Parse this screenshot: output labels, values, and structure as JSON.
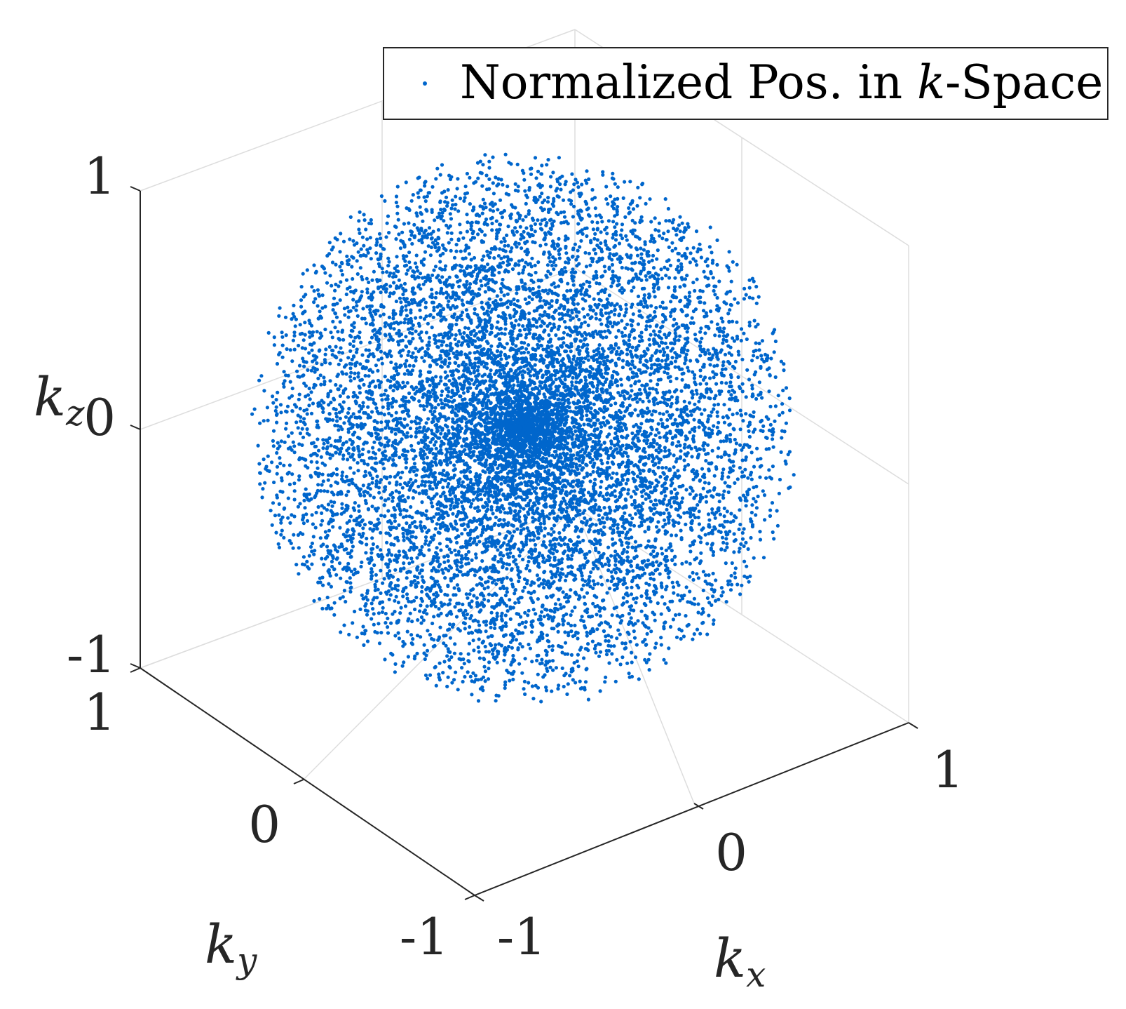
{
  "chart_data": {
    "type": "scatter",
    "projection": "3d",
    "description_of_data": "points uniformly distributed on and within the unit sphere in normalized k-space, denser toward the center",
    "series": [
      {
        "name": "Normalized Pos. in k-Space",
        "color": "#0066cc",
        "marker": "dot",
        "distribution": "ball",
        "radius": 1
      }
    ],
    "axes": {
      "x": {
        "label_base": "k",
        "label_sub": "x",
        "range": [
          -1,
          1
        ],
        "ticks": [
          "-1",
          "0",
          "1"
        ]
      },
      "y": {
        "label_base": "k",
        "label_sub": "y",
        "range": [
          -1,
          1
        ],
        "ticks": [
          "-1",
          "0",
          "1"
        ]
      },
      "z": {
        "label_base": "k",
        "label_sub": "z",
        "range": [
          -1,
          1
        ],
        "ticks": [
          "-1",
          "0",
          "1"
        ]
      }
    },
    "grid": true,
    "legend": {
      "position": "top-right",
      "text_before": "Normalized Pos. in ",
      "text_italic": "k",
      "text_after": "-Space"
    }
  }
}
